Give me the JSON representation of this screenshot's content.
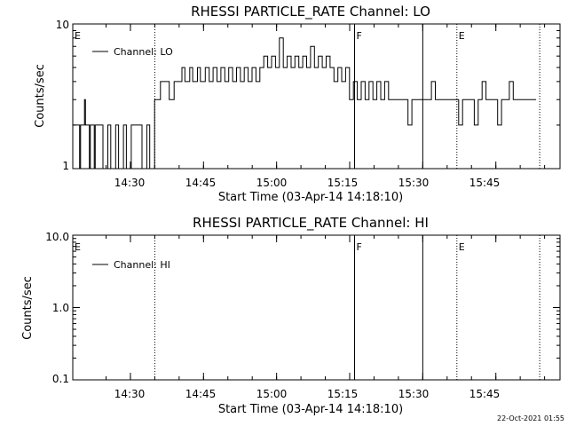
{
  "chart_data": [
    {
      "type": "line",
      "title": "RHESSI PARTICLE_RATE Channel: LO",
      "xlabel": "Start Time (03-Apr-14 14:18:10)",
      "ylabel": "Counts/sec",
      "ylog": true,
      "ylim": [
        1,
        10
      ],
      "ytick_labels": [
        "1",
        "10"
      ],
      "x_unit": "minutes since 14:18:10",
      "xlim": [
        0,
        100
      ],
      "xtick_labels": [
        "14:30",
        "14:45",
        "15:00",
        "15:15",
        "15:30",
        "15:45"
      ],
      "legend": "Channel: LO",
      "legend_position": "top-left",
      "markers": [
        {
          "label": "E",
          "time": "14:18:10",
          "style": "none"
        },
        {
          "label": "",
          "time": "14:35",
          "style": "dotted"
        },
        {
          "label": "F",
          "time": "15:16",
          "style": "solid"
        },
        {
          "label": "",
          "time": "15:30",
          "style": "solid"
        },
        {
          "label": "E",
          "time": "15:37",
          "style": "dotted"
        },
        {
          "label": "",
          "time": "15:54",
          "style": "dotted"
        }
      ],
      "series": [
        {
          "name": "Channel: LO",
          "x": [
            0,
            1.4,
            1.6,
            2.4,
            2.6,
            3.4,
            3.6,
            4.4,
            4.6,
            5.6,
            6.2,
            7.2,
            7.8,
            8.8,
            9.4,
            10.4,
            11.0,
            12.0,
            12.6,
            13.6,
            14.2,
            15.2,
            15.8,
            16.8,
            17.0,
            18.0,
            18.4,
            19.4,
            19.8,
            20.8,
            21.4,
            22.4,
            23.0,
            24.0,
            24.6,
            25.6,
            26.2,
            27.2,
            28.0,
            28.8,
            29.6,
            30.4,
            31.2,
            32.0,
            32.8,
            33.6,
            34.4,
            35.2,
            36.0,
            36.8,
            37.6,
            38.4,
            39.2,
            40.0,
            40.8,
            41.6,
            42.4,
            43.2,
            44.0,
            44.8,
            45.6,
            46.4,
            47.2,
            48.0,
            48.8,
            49.6,
            50.4,
            51.2,
            52.0,
            52.8,
            53.6,
            54.4,
            55.2,
            56.0,
            56.8,
            57.6,
            58.4,
            59.2,
            60.0,
            60.8,
            61.6,
            62.4,
            63.2,
            64.0,
            64.8,
            65.6,
            66.4,
            67.2,
            68.0,
            68.8,
            69.6,
            70.4,
            71.2,
            72.0,
            72.8,
            73.6,
            74.4,
            75.2,
            76.0,
            76.8,
            77.6,
            78.4,
            79.2,
            80.0,
            80.8,
            81.6,
            82.4,
            83.2,
            84.0,
            84.8,
            85.6,
            86.4,
            87.2,
            88.0,
            88.8,
            89.6,
            90.4,
            91.2,
            92.0,
            92.8,
            93.6
          ],
          "y": [
            2,
            1,
            2,
            3,
            2,
            1,
            2,
            1,
            2,
            2,
            1,
            2,
            1,
            2,
            1,
            2,
            1,
            2,
            2,
            2,
            1,
            2,
            1,
            3,
            3,
            4,
            4,
            4,
            3,
            4,
            4,
            5,
            4,
            5,
            4,
            5,
            4,
            5,
            4,
            5,
            4,
            5,
            4,
            5,
            4,
            5,
            4,
            5,
            4,
            5,
            4,
            5,
            6,
            5,
            6,
            5,
            8,
            5,
            6,
            5,
            6,
            5,
            6,
            5,
            7,
            5,
            6,
            5,
            6,
            5,
            4,
            5,
            4,
            5,
            3,
            4,
            3,
            4,
            3,
            4,
            3,
            4,
            3,
            4,
            3,
            3,
            3,
            3,
            3,
            2,
            3,
            3,
            3,
            3,
            3,
            4,
            3,
            3,
            3,
            3,
            3,
            3,
            2,
            3,
            3,
            3,
            2,
            3,
            4,
            3,
            3,
            3,
            2,
            3,
            3,
            4,
            3,
            3,
            3,
            3,
            3
          ]
        }
      ]
    },
    {
      "type": "line",
      "title": "RHESSI PARTICLE_RATE Channel: HI",
      "xlabel": "Start Time (03-Apr-14 14:18:10)",
      "ylabel": "Counts/sec",
      "ylog": true,
      "ylim": [
        0.1,
        10
      ],
      "ytick_labels": [
        "0.1",
        "1.0",
        "10.0"
      ],
      "xlim": [
        0,
        100
      ],
      "xtick_labels": [
        "14:30",
        "14:45",
        "15:00",
        "15:15",
        "15:30",
        "15:45"
      ],
      "legend": "Channel: HI",
      "legend_position": "top-left",
      "markers": [
        {
          "label": "E",
          "time": "14:18:10",
          "style": "none"
        },
        {
          "label": "",
          "time": "14:35",
          "style": "dotted"
        },
        {
          "label": "F",
          "time": "15:16",
          "style": "solid"
        },
        {
          "label": "",
          "time": "15:30",
          "style": "solid"
        },
        {
          "label": "E",
          "time": "15:37",
          "style": "dotted"
        },
        {
          "label": "",
          "time": "15:54",
          "style": "dotted"
        }
      ],
      "series": [
        {
          "name": "Channel: HI",
          "x": [],
          "y": []
        }
      ]
    }
  ],
  "timestamp": "22-Oct-2021 01:55",
  "colors": {
    "background": "#ffffff",
    "foreground": "#000000"
  }
}
